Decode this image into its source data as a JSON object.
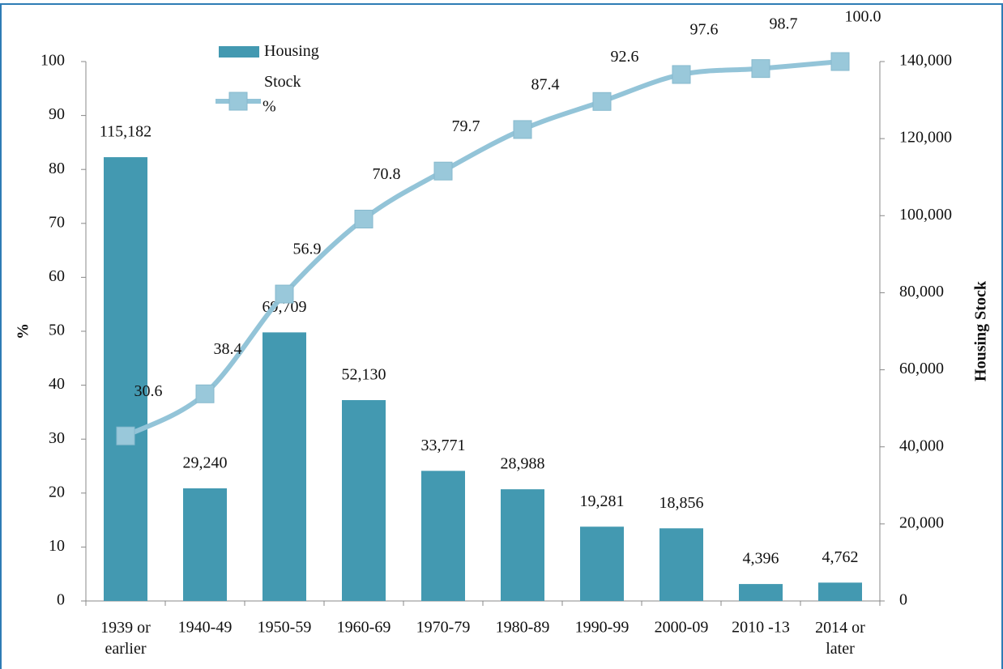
{
  "chart_data": {
    "type": "combo",
    "categories": [
      "1939 or earlier",
      "1940-49",
      "1950-59",
      "1960-69",
      "1970-79",
      "1980-89",
      "1990-99",
      "2000-09",
      "2010 -13",
      "2014 or later"
    ],
    "series": [
      {
        "name": "Housing Stock",
        "type": "bar",
        "axis": "y2",
        "color": "#4399b1",
        "values": [
          115182,
          29240,
          69709,
          52130,
          33771,
          28988,
          19281,
          18856,
          4396,
          4762
        ],
        "value_labels": [
          "115,182",
          "29,240",
          "69,709",
          "52,130",
          "33,771",
          "28,988",
          "19,281",
          "18,856",
          "4,396",
          "4,762"
        ]
      },
      {
        "name": "%",
        "type": "line",
        "color": "#93c4d8",
        "values": [
          30.6,
          38.4,
          56.9,
          70.8,
          79.7,
          87.4,
          92.6,
          97.6,
          98.7,
          100.0
        ],
        "value_labels": [
          "30.6",
          "38.4",
          "56.9",
          "70.8",
          "79.7",
          "87.4",
          "92.6",
          "97.6",
          "98.7",
          "100.0"
        ]
      }
    ],
    "ylabel": "%",
    "y2label": "Housing Stock",
    "ylim": [
      0,
      100
    ],
    "yticks": [
      0,
      10,
      20,
      30,
      40,
      50,
      60,
      70,
      80,
      90,
      100
    ],
    "y2lim": [
      0,
      140000
    ],
    "y2ticks": [
      0,
      {
        "value": 20000,
        "label": "20,000"
      },
      {
        "value": 40000,
        "label": "40,000"
      },
      {
        "value": 60000,
        "label": "60,000"
      },
      {
        "value": 80000,
        "label": "80,000"
      },
      {
        "value": 100000,
        "label": "100,000"
      },
      {
        "value": 120000,
        "label": "120,000"
      },
      {
        "value": 140000,
        "label": "140,000"
      }
    ]
  }
}
